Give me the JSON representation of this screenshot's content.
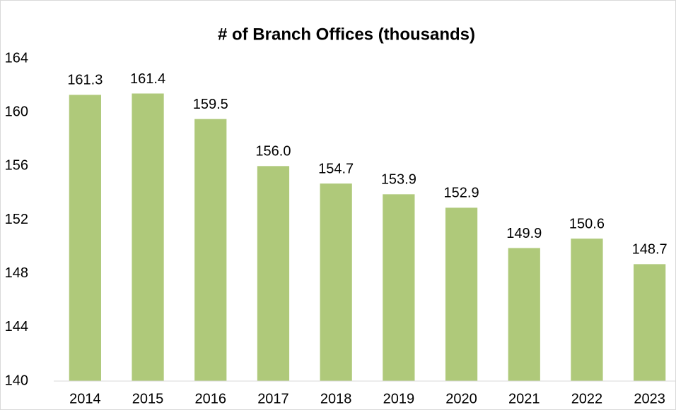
{
  "chart_data": {
    "type": "bar",
    "title": "# of Branch Offices (thousands)",
    "categories": [
      "2014",
      "2015",
      "2016",
      "2017",
      "2018",
      "2019",
      "2020",
      "2021",
      "2022",
      "2023"
    ],
    "values": [
      161.3,
      161.4,
      159.5,
      156.0,
      154.7,
      153.9,
      152.9,
      149.9,
      150.6,
      148.7
    ],
    "value_labels": [
      "161.3",
      "161.4",
      "159.5",
      "156.0",
      "154.7",
      "153.9",
      "152.9",
      "149.9",
      "150.6",
      "148.7"
    ],
    "color": "#afc97a",
    "ylim": [
      140,
      164
    ],
    "yticks": [
      140,
      144,
      148,
      152,
      156,
      160,
      164
    ],
    "grid": false
  }
}
